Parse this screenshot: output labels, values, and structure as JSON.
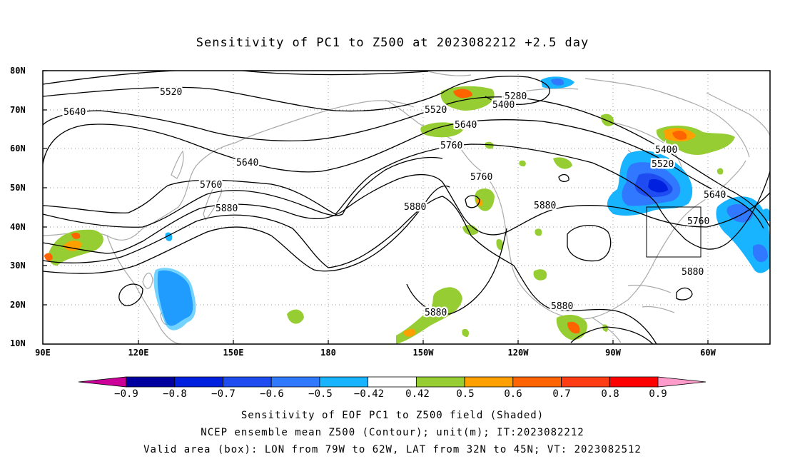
{
  "title": "Sensitivity of PC1 to Z500 at 2023082212 +2.5 day",
  "lat_ticks": [
    "80N",
    "70N",
    "60N",
    "50N",
    "40N",
    "30N",
    "20N",
    "10N"
  ],
  "lon_ticks": [
    "90E",
    "120E",
    "150E",
    "180",
    "150W",
    "120W",
    "90W",
    "60W"
  ],
  "contour_labels": [
    "5280",
    "5400",
    "5520",
    "5640",
    "5760",
    "5880"
  ],
  "colorbar": {
    "labels": [
      "−0.9",
      "−0.8",
      "−0.7",
      "−0.6",
      "−0.5",
      "−0.42",
      "0.42",
      "0.5",
      "0.6",
      "0.7",
      "0.8",
      "0.9"
    ],
    "colors": [
      "#0000a0",
      "#0020e0",
      "#1e4cf0",
      "#2f78ff",
      "#18b4ff",
      "#ffffff",
      "#96cd32",
      "#ffa000",
      "#ff6400",
      "#ff3c14",
      "#ff0000"
    ],
    "under_color": "#cc0099",
    "over_color": "#ff9ccc"
  },
  "captions": [
    "Sensitivity of EOF PC1 to Z500 field (Shaded)",
    "NCEP ensemble mean Z500 (Contour); unit(m); IT:2023082212",
    "Valid area (box): LON from 79W to 62W, LAT from 32N to 45N; VT: 2023082512"
  ]
}
